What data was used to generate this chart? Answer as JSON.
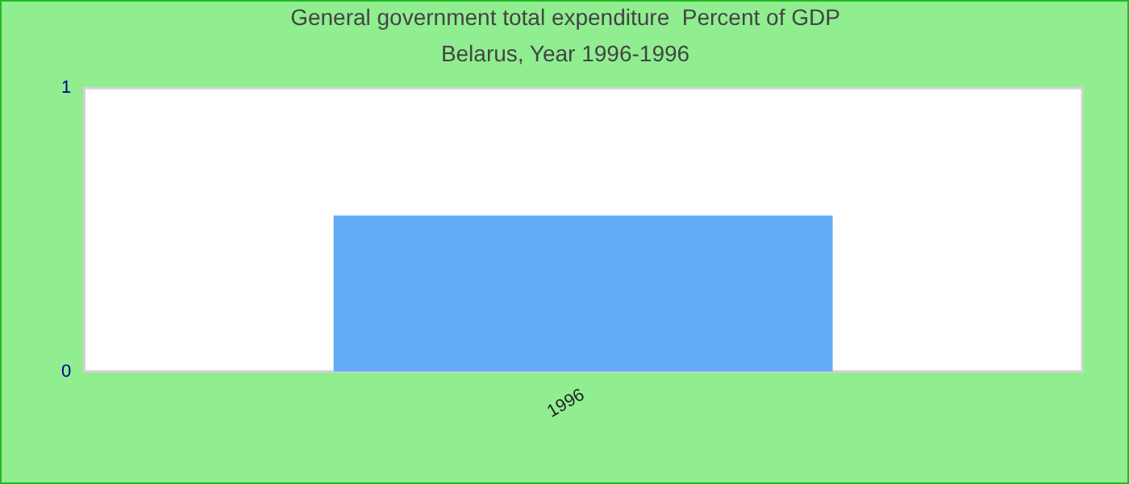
{
  "chart_data": {
    "type": "bar",
    "title": "General government total expenditure  Percent of GDP",
    "subtitle": "Belarus, Year 1996-1996",
    "categories": [
      "1996"
    ],
    "values": [
      0.55
    ],
    "color": "#62aaf5",
    "ylim": [
      0,
      1
    ],
    "yticks": [
      {
        "value": 0,
        "label": "0"
      },
      {
        "value": 1,
        "label": "1"
      }
    ],
    "grid": false,
    "legend": false
  }
}
